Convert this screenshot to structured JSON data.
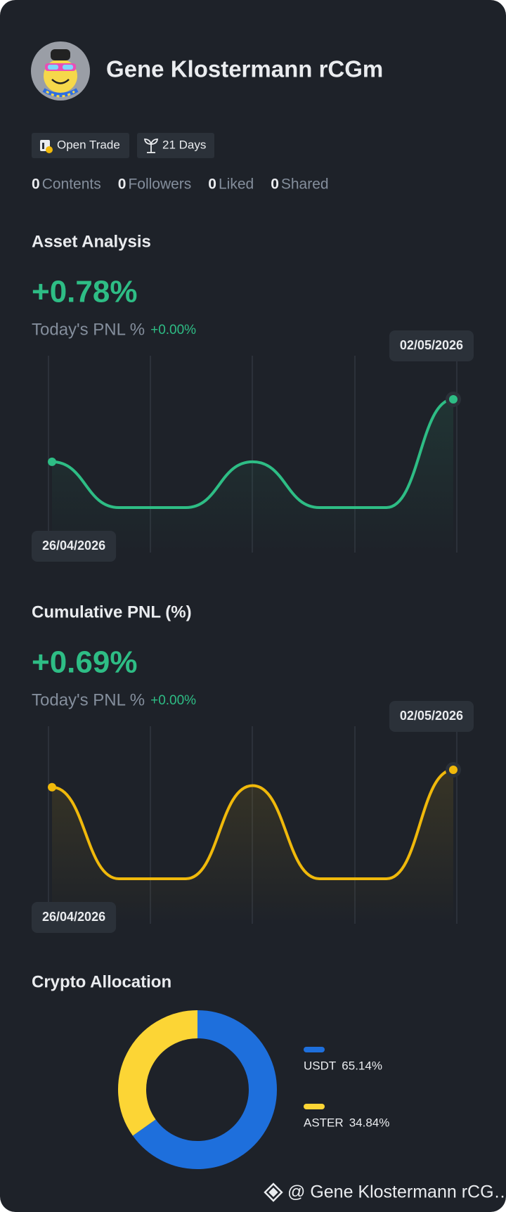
{
  "profile": {
    "name": "Gene Klostermann rCGm",
    "badges": [
      "Open Trade",
      "21 Days"
    ],
    "stats": [
      {
        "count": 0,
        "label": "Contents"
      },
      {
        "count": 0,
        "label": "Followers"
      },
      {
        "count": 0,
        "label": "Liked"
      },
      {
        "count": 0,
        "label": "Shared"
      }
    ]
  },
  "asset_analysis": {
    "title": "Asset Analysis",
    "value": "+0.78%",
    "pnl_label": "Today's PNL %",
    "pnl_value": "+0.00%",
    "chart": {
      "type": "line",
      "categories": [
        "26/04/2026",
        null,
        null,
        null,
        null,
        null,
        "02/05/2026"
      ],
      "values": [
        0.33,
        0,
        0,
        0.33,
        0,
        0,
        0.78
      ],
      "color": "#2ebd85"
    }
  },
  "cumulative_pnl": {
    "title": "Cumulative PNL (%)",
    "value": "+0.69%",
    "pnl_label": "Today's PNL %",
    "pnl_value": "+0.00%",
    "chart": {
      "type": "line",
      "categories": [
        "26/04/2026",
        null,
        null,
        null,
        null,
        null,
        "02/05/2026"
      ],
      "values": [
        0.58,
        0,
        0,
        0.59,
        0,
        0,
        0.69
      ],
      "color": "#f0b90b"
    }
  },
  "crypto_allocation": {
    "title": "Crypto Allocation",
    "chart": {
      "type": "pie",
      "categories": [
        "USDT",
        "ASTER"
      ],
      "values": [
        65.14,
        34.84
      ],
      "value_labels": [
        "65.14%",
        "34.84%"
      ],
      "colors": [
        "#1e6fdc",
        "#fcd535"
      ]
    }
  },
  "footer": {
    "text": "@ Gene Klostermann rCG…"
  }
}
